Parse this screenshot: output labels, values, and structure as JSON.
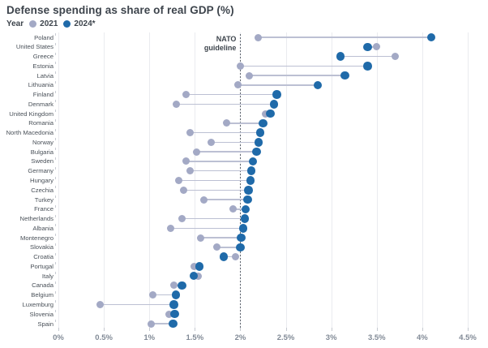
{
  "title": "Defense spending as share of real GDP (%)",
  "legend": {
    "label": "Year",
    "items": [
      {
        "label": "2021",
        "color": "#a3a9c5"
      },
      {
        "label": "2024*",
        "color": "#1f6aa9"
      }
    ]
  },
  "colors": {
    "gray_2021": "#a3a9c5",
    "blue_2024": "#1f6aa9",
    "connector": "#bcc0d3",
    "gridline": "#eaebef",
    "guideline": "#5d646d",
    "text_dark": "#3d444c",
    "axis_text": "#818a96"
  },
  "chart_data": {
    "type": "scatter",
    "subtype": "dumbbell",
    "title": "Defense spending as share of real GDP (%)",
    "xlabel": "",
    "ylabel": "",
    "xlim": [
      0,
      4.5
    ],
    "x_tick_labels": [
      "0%",
      "0.5%",
      "1%",
      "1.5%",
      "2%",
      "2.5%",
      "3%",
      "3.5%",
      "4%",
      "4.5%"
    ],
    "x_tick_values": [
      0,
      0.5,
      1,
      1.5,
      2,
      2.5,
      3,
      3.5,
      4,
      4.5
    ],
    "grid": true,
    "legend_position": "top-left",
    "reference_line": {
      "value": 2,
      "label_line1": "NATO",
      "label_line2": "guideline"
    },
    "categories": [
      "Poland",
      "United States",
      "Greece",
      "Estonia",
      "Latvia",
      "Lithuania",
      "Finland",
      "Denmark",
      "United Kingdom",
      "Romania",
      "North Macedonia",
      "Norway",
      "Bulgaria",
      "Sweden",
      "Germany",
      "Hungary",
      "Czechia",
      "Turkey",
      "France",
      "Netherlands",
      "Albania",
      "Montenegro",
      "Slovakia",
      "Croatia",
      "Portugal",
      "Italy",
      "Canada",
      "Belgium",
      "Luxemburg",
      "Slovenia",
      "Spain"
    ],
    "series": [
      {
        "name": "2021",
        "values": [
          2.2,
          3.5,
          3.7,
          2.0,
          2.1,
          1.97,
          1.4,
          1.3,
          2.28,
          1.85,
          1.45,
          1.68,
          1.52,
          1.4,
          1.45,
          1.32,
          1.38,
          1.6,
          1.92,
          1.36,
          1.23,
          1.56,
          1.74,
          1.95,
          1.49,
          1.54,
          1.27,
          1.04,
          0.46,
          1.22,
          1.02
        ]
      },
      {
        "name": "2024*",
        "values": [
          4.1,
          3.4,
          3.1,
          3.4,
          3.15,
          2.85,
          2.4,
          2.37,
          2.33,
          2.25,
          2.22,
          2.2,
          2.18,
          2.14,
          2.12,
          2.11,
          2.09,
          2.08,
          2.06,
          2.05,
          2.03,
          2.01,
          2.0,
          1.82,
          1.55,
          1.49,
          1.36,
          1.29,
          1.27,
          1.28,
          1.26
        ]
      }
    ]
  }
}
